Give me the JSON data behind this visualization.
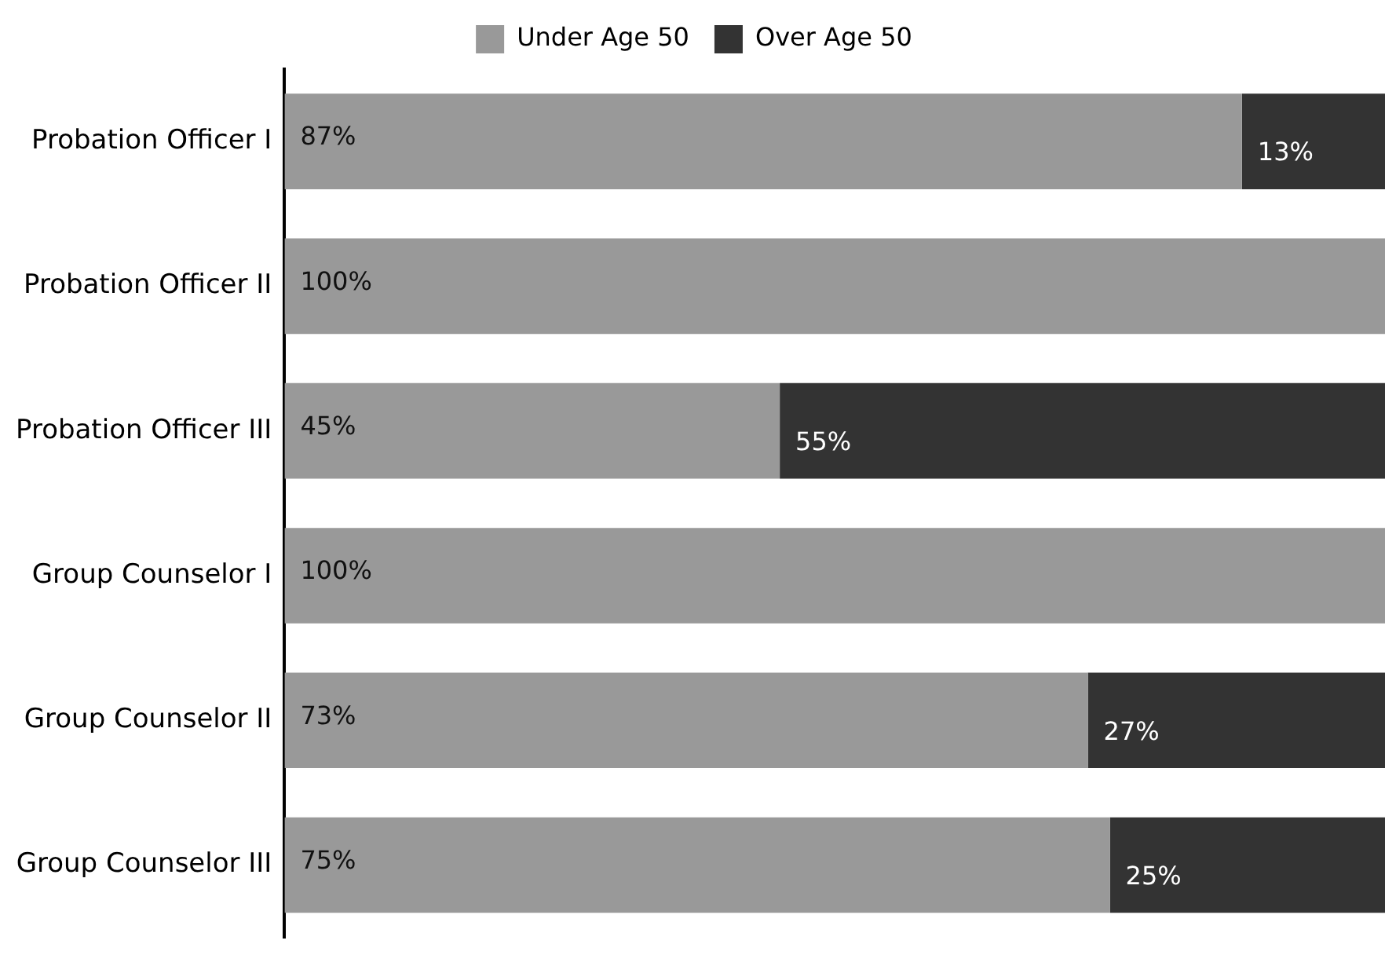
{
  "chart_data": {
    "type": "bar",
    "orientation": "horizontal",
    "stacked": true,
    "categories": [
      "Probation Officer I",
      "Probation Officer II",
      "Probation Officer III",
      "Group Counselor I",
      "Group Counselor II",
      "Group Counselor III"
    ],
    "series": [
      {
        "name": "Under Age 50",
        "color": "#999999",
        "values": [
          87,
          100,
          45,
          100,
          73,
          75
        ],
        "value_labels": [
          "87%",
          "100%",
          "45%",
          "100%",
          "73%",
          "75%"
        ]
      },
      {
        "name": "Over Age 50",
        "color": "#333333",
        "values": [
          13,
          0,
          55,
          0,
          27,
          25
        ],
        "value_labels": [
          "13%",
          null,
          "55%",
          null,
          "27%",
          "25%"
        ]
      }
    ],
    "xlim": [
      0,
      100
    ],
    "tick_labels": "y",
    "grid": false,
    "legend": "top"
  }
}
